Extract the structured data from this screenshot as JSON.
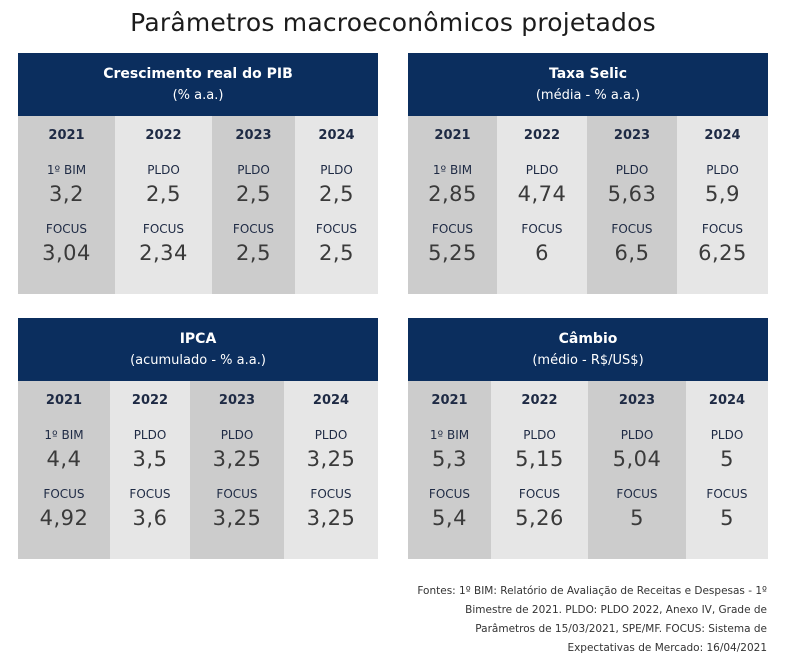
{
  "title": "Parâmetros macroeconômicos projetados",
  "panels": [
    {
      "heading": "Crescimento real do PIB",
      "subheading": "(% a.a.)",
      "columns": [
        {
          "year": "2021",
          "src1": "1º BIM",
          "val1": "3,2",
          "src2": "FOCUS",
          "val2": "3,04"
        },
        {
          "year": "2022",
          "src1": "PLDO",
          "val1": "2,5",
          "src2": "FOCUS",
          "val2": "2,34"
        },
        {
          "year": "2023",
          "src1": "PLDO",
          "val1": "2,5",
          "src2": "FOCUS",
          "val2": "2,5"
        },
        {
          "year": "2024",
          "src1": "PLDO",
          "val1": "2,5",
          "src2": "FOCUS",
          "val2": "2,5"
        }
      ]
    },
    {
      "heading": "Taxa Selic",
      "subheading": "(média - % a.a.)",
      "columns": [
        {
          "year": "2021",
          "src1": "1º BIM",
          "val1": "2,85",
          "src2": "FOCUS",
          "val2": "5,25"
        },
        {
          "year": "2022",
          "src1": "PLDO",
          "val1": "4,74",
          "src2": "FOCUS",
          "val2": "6"
        },
        {
          "year": "2023",
          "src1": "PLDO",
          "val1": "5,63",
          "src2": "FOCUS",
          "val2": "6,5"
        },
        {
          "year": "2024",
          "src1": "PLDO",
          "val1": "5,9",
          "src2": "FOCUS",
          "val2": "6,25"
        }
      ]
    },
    {
      "heading": "IPCA",
      "subheading": "(acumulado - % a.a.)",
      "columns": [
        {
          "year": "2021",
          "src1": "1º BIM",
          "val1": "4,4",
          "src2": "FOCUS",
          "val2": "4,92"
        },
        {
          "year": "2022",
          "src1": "PLDO",
          "val1": "3,5",
          "src2": "FOCUS",
          "val2": "3,6"
        },
        {
          "year": "2023",
          "src1": "PLDO",
          "val1": "3,25",
          "src2": "FOCUS",
          "val2": "3,25"
        },
        {
          "year": "2024",
          "src1": "PLDO",
          "val1": "3,25",
          "src2": "FOCUS",
          "val2": "3,25"
        }
      ]
    },
    {
      "heading": "Câmbio",
      "subheading": "(médio - R$/US$)",
      "columns": [
        {
          "year": "2021",
          "src1": "1º BIM",
          "val1": "5,3",
          "src2": "FOCUS",
          "val2": "5,4"
        },
        {
          "year": "2022",
          "src1": "PLDO",
          "val1": "5,15",
          "src2": "FOCUS",
          "val2": "5,26"
        },
        {
          "year": "2023",
          "src1": "PLDO",
          "val1": "5,04",
          "src2": "FOCUS",
          "val2": "5"
        },
        {
          "year": "2024",
          "src1": "PLDO",
          "val1": "5",
          "src2": "FOCUS",
          "val2": "5"
        }
      ]
    }
  ],
  "sources": [
    "Fontes: 1º BIM: Relatório de Avaliação de Receitas e Despesas - 1º",
    "Bimestre de 2021. PLDO: PLDO 2022, Anexo IV, Grade de",
    "Parâmetros de 15/03/2021, SPE/MF. FOCUS: Sistema de",
    "Expectativas de Mercado: 16/04/2021"
  ]
}
